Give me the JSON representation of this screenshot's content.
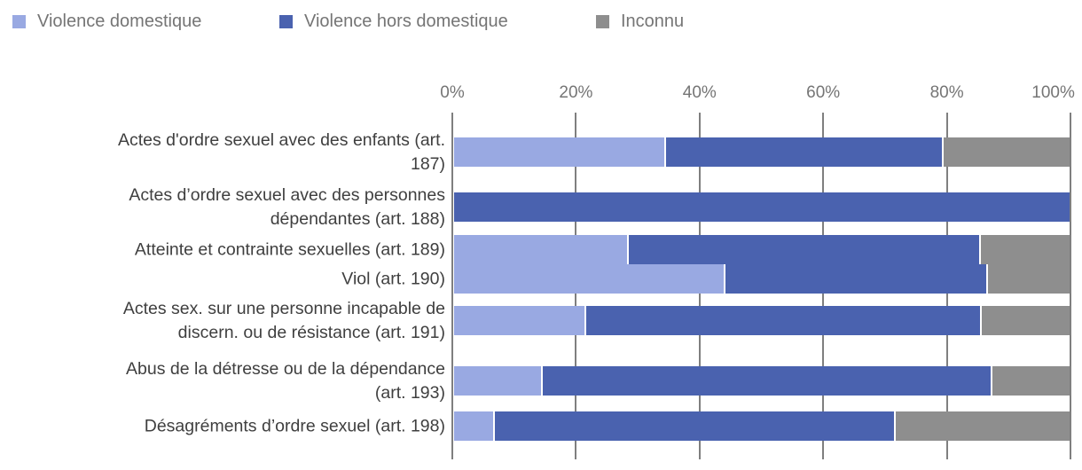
{
  "legend": {
    "items": [
      {
        "label": "Violence domestique",
        "color": "#99A9E2"
      },
      {
        "label": "Violence hors domestique",
        "color": "#4A62AF"
      },
      {
        "label": "Inconnu",
        "color": "#8E8E8E"
      }
    ]
  },
  "axis": {
    "ticks": [
      "0%",
      "20%",
      "40%",
      "60%",
      "80%",
      "100%"
    ]
  },
  "chart_data": {
    "type": "bar",
    "orientation": "horizontal-stacked",
    "title": "",
    "xlabel": "",
    "ylabel": "",
    "xlim": [
      0,
      100
    ],
    "x_unit": "%",
    "grid": "vertical",
    "legend_position": "top-left",
    "categories": [
      "Actes d'ordre sexuel avec des enfants (art. 187)",
      "Actes d’ordre sexuel avec des personnes dépendantes (art. 188)",
      "Atteinte et contrainte sexuelles (art. 189)",
      "Viol (art. 190)",
      "Actes sex. sur une personne incapable de discern. ou de résistance (art. 191)",
      "Abus de la détresse ou de la dépendance (art. 193)",
      "Désagréments d’ordre sexuel (art. 198)"
    ],
    "category_lines": [
      [
        "Actes d'ordre sexuel avec des enfants (art.",
        "187)"
      ],
      [
        "Actes d’ordre sexuel avec des personnes",
        "dépendantes (art. 188)"
      ],
      [
        "Atteinte et contrainte sexuelles (art. 189)"
      ],
      [
        "Viol (art. 190)"
      ],
      [
        "Actes sex. sur une personne incapable de",
        "discern. ou de résistance (art. 191)"
      ],
      [
        "Abus de la détresse ou de la dépendance",
        "(art. 193)"
      ],
      [
        "Désagréments d’ordre sexuel (art. 198)"
      ]
    ],
    "series": [
      {
        "name": "Violence domestique",
        "color": "#99A9E2",
        "values": [
          34.2,
          0,
          28.1,
          43.8,
          21.2,
          14.1,
          6.4
        ]
      },
      {
        "name": "Violence hors domestique",
        "color": "#4A62AF",
        "values": [
          45.0,
          100,
          57.2,
          42.6,
          64.2,
          73.1,
          65.0
        ]
      },
      {
        "name": "Inconnu",
        "color": "#8E8E8E",
        "values": [
          20.8,
          0,
          14.7,
          13.6,
          14.6,
          12.8,
          28.6
        ]
      }
    ]
  }
}
